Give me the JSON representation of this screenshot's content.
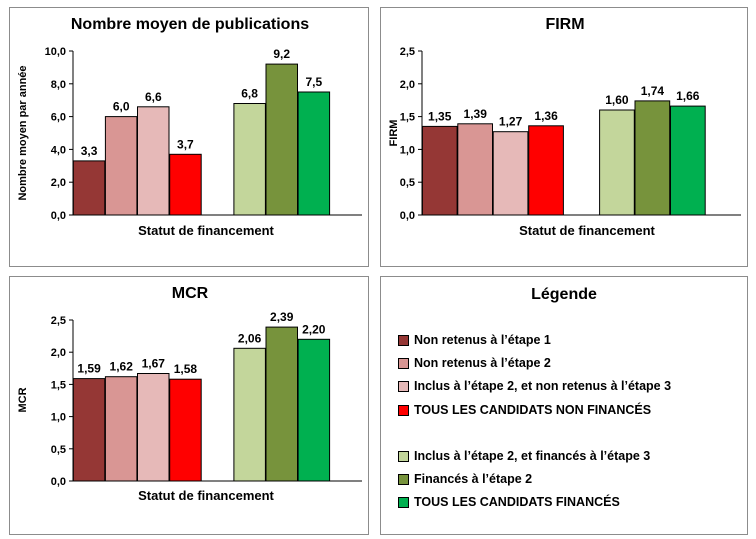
{
  "charts": [
    {
      "title": "Nombre moyen de publications",
      "ylabel": "Nombre moyen par année",
      "xlabel": "Statut de financement",
      "ylim": [
        0,
        10
      ],
      "ticks": [
        "0,0",
        "2,0",
        "4,0",
        "6,0",
        "8,0",
        "10,0"
      ],
      "values": [
        3.3,
        6.0,
        6.6,
        3.7,
        6.8,
        9.2,
        7.5
      ],
      "labels": [
        "3,3",
        "6,0",
        "6,6",
        "3,7",
        "6,8",
        "9,2",
        "7,5"
      ]
    },
    {
      "title": "FIRM",
      "ylabel": "FIRM",
      "xlabel": "Statut de financement",
      "ylim": [
        0,
        2.5
      ],
      "ticks": [
        "0,0",
        "0,5",
        "1,0",
        "1,5",
        "2,0",
        "2,5"
      ],
      "values": [
        1.35,
        1.39,
        1.27,
        1.36,
        1.6,
        1.74,
        1.66
      ],
      "labels": [
        "1,35",
        "1,39",
        "1,27",
        "1,36",
        "1,60",
        "1,74",
        "1,66"
      ]
    },
    {
      "title": "MCR",
      "ylabel": "MCR",
      "xlabel": "Statut de financement",
      "ylim": [
        0,
        2.5
      ],
      "ticks": [
        "0,0",
        "0,5",
        "1,0",
        "1,5",
        "2,0",
        "2,5"
      ],
      "values": [
        1.59,
        1.62,
        1.67,
        1.58,
        2.06,
        2.39,
        2.2
      ],
      "labels": [
        "1,59",
        "1,62",
        "1,67",
        "1,58",
        "2,06",
        "2,39",
        "2,20"
      ]
    }
  ],
  "chart_data": [
    {
      "type": "bar",
      "title": "Nombre moyen de publications",
      "xlabel": "Statut de financement",
      "ylabel": "Nombre moyen par année",
      "ylim": [
        0,
        10
      ],
      "categories": [
        "Non retenus à l’étape 1",
        "Non retenus à l’étape 2",
        "Inclus à l’étape 2, et non retenus à l’étape 3",
        "TOUS LES CANDIDATS NON FINANCÉS",
        "Inclus à l’étape 2, et financés à l’étape 3",
        "Financés à l’étape 2",
        "TOUS LES CANDIDATS FINANCÉS"
      ],
      "values": [
        3.3,
        6.0,
        6.6,
        3.7,
        6.8,
        9.2,
        7.5
      ],
      "grid": false
    },
    {
      "type": "bar",
      "title": "FIRM",
      "xlabel": "Statut de financement",
      "ylabel": "FIRM",
      "ylim": [
        0,
        2.5
      ],
      "categories": [
        "Non retenus à l’étape 1",
        "Non retenus à l’étape 2",
        "Inclus à l’étape 2, et non retenus à l’étape 3",
        "TOUS LES CANDIDATS NON FINANCÉS",
        "Inclus à l’étape 2, et financés à l’étape 3",
        "Financés à l’étape 2",
        "TOUS LES CANDIDATS FINANCÉS"
      ],
      "values": [
        1.35,
        1.39,
        1.27,
        1.36,
        1.6,
        1.74,
        1.66
      ],
      "grid": false
    },
    {
      "type": "bar",
      "title": "MCR",
      "xlabel": "Statut de financement",
      "ylabel": "MCR",
      "ylim": [
        0,
        2.5
      ],
      "categories": [
        "Non retenus à l’étape 1",
        "Non retenus à l’étape 2",
        "Inclus à l’étape 2, et non retenus à l’étape 3",
        "TOUS LES CANDIDATS NON FINANCÉS",
        "Inclus à l’étape 2, et financés à l’étape 3",
        "Financés à l’étape 2",
        "TOUS LES CANDIDATS FINANCÉS"
      ],
      "values": [
        1.59,
        1.62,
        1.67,
        1.58,
        2.06,
        2.39,
        2.2
      ],
      "grid": false
    }
  ],
  "legend": {
    "title": "Légende",
    "items": [
      {
        "label": "Non retenus à l’étape 1",
        "color": "#953735"
      },
      {
        "label": "Non retenus à l’étape 2",
        "color": "#d99694"
      },
      {
        "label": "Inclus à l’étape 2, et non retenus à l’étape 3",
        "color": "#e6b9b8"
      },
      {
        "label": "TOUS LES CANDIDATS NON FINANCÉS",
        "color": "#ff0000"
      },
      {
        "label": "Inclus à l’étape 2, et financés à l’étape 3",
        "color": "#c3d69b"
      },
      {
        "label": "Financés à l’étape 2",
        "color": "#77933c"
      },
      {
        "label": "TOUS LES CANDIDATS FINANCÉS",
        "color": "#00b050"
      }
    ]
  }
}
